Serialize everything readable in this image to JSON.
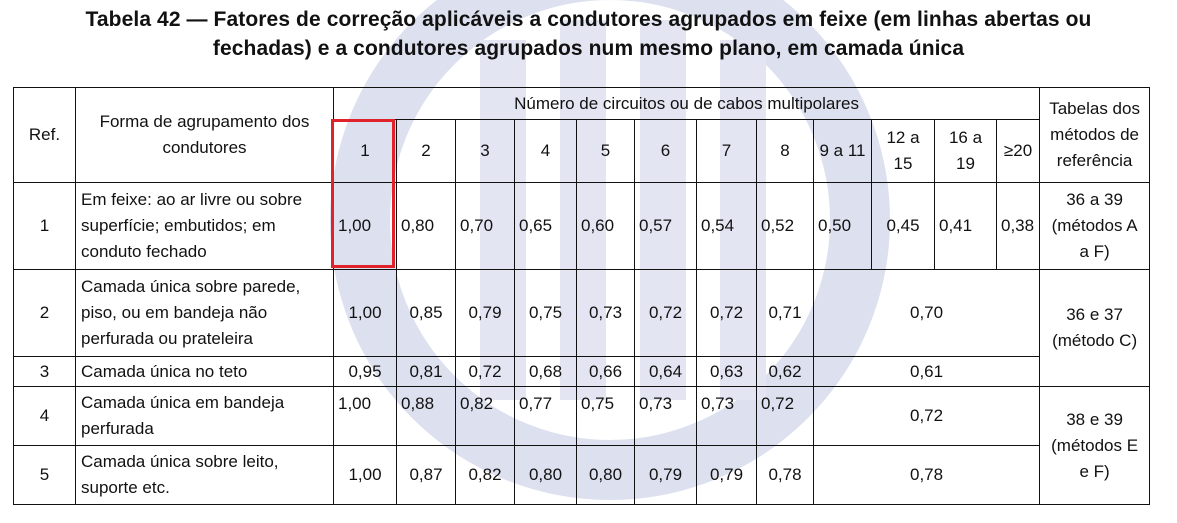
{
  "title": {
    "line1": "Tabela 42 — Fatores de correção aplicáveis a condutores agrupados em feixe (em linhas abertas ou",
    "line2": "fechadas) e a condutores agrupados num mesmo plano, em camada única"
  },
  "header": {
    "ref": "Ref.",
    "forma": "Forma de agrupamento dos condutores",
    "numero": "Número de circuitos ou de cabos multipolares",
    "tabelas": "Tabelas dos métodos de referência",
    "counts": [
      "1",
      "2",
      "3",
      "4",
      "5",
      "6",
      "7",
      "8",
      "9 a 11",
      "12 a 15",
      "16 a 19",
      "≥20"
    ]
  },
  "rows": [
    {
      "ref": "1",
      "forma": "Em feixe: ao ar livre ou sobre superfície; embutidos; em conduto fechado",
      "values": [
        "1,00",
        "0,80",
        "0,70",
        "0,65",
        "0,60",
        "0,57",
        "0,54",
        "0,52",
        "0,50",
        "0,45",
        "0,41",
        "0,38"
      ],
      "tabelas": "36 a 39 (métodos A a F)"
    },
    {
      "ref": "2",
      "forma": "Camada única sobre parede, piso, ou em bandeja não perfurada ou prateleira",
      "values": [
        "1,00",
        "0,85",
        "0,79",
        "0,75",
        "0,73",
        "0,72",
        "0,72",
        "0,71"
      ],
      "merged": "0,70",
      "tabelas": "36 e 37 (método C)"
    },
    {
      "ref": "3",
      "forma": "Camada única no teto",
      "values": [
        "0,95",
        "0,81",
        "0,72",
        "0,68",
        "0,66",
        "0,64",
        "0,63",
        "0,62"
      ],
      "merged": "0,61"
    },
    {
      "ref": "4",
      "forma": "Camada única em bandeja perfurada",
      "values": [
        "1,00",
        "0,88",
        "0,82",
        "0,77",
        "0,75",
        "0,73",
        "0,73",
        "0,72"
      ],
      "merged": "0,72",
      "tabelas": "38 e 39 (métodos E e F)"
    },
    {
      "ref": "5",
      "forma": "Camada única sobre leito, suporte etc.",
      "values": [
        "1,00",
        "0,87",
        "0,82",
        "0,80",
        "0,80",
        "0,79",
        "0,79",
        "0,78"
      ],
      "merged": "0,78"
    }
  ],
  "colors": {
    "highlight": "#e0222a",
    "watermark": "#dde1ef"
  }
}
